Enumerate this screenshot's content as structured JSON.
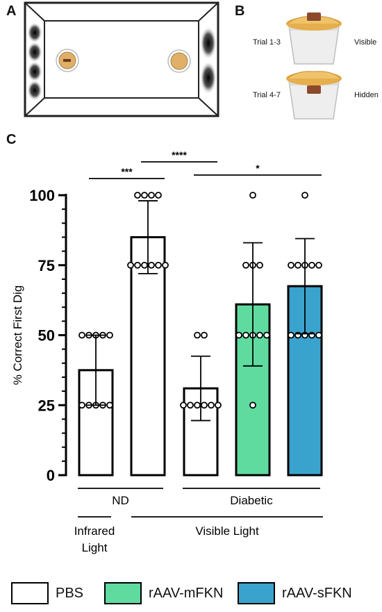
{
  "panels": {
    "a": "A",
    "b": "B",
    "c": "C"
  },
  "panel_b": {
    "rows": [
      {
        "left": "Trial 1-3",
        "right": "Visible"
      },
      {
        "left": "Trial 4-7",
        "right": "Hidden"
      }
    ]
  },
  "colors": {
    "pbs": "#ffffff",
    "mfkn": "#5fdba0",
    "sfkn": "#3aa3cd",
    "straw": "#e6ae4c",
    "block": "#8b4a2b"
  },
  "chart_data": {
    "type": "bar",
    "ylabel": "% Correct First Dig",
    "ylim": [
      0,
      100
    ],
    "yticks": [
      0,
      25,
      50,
      75,
      100
    ],
    "categories": [
      "ND PBS Infrared",
      "ND PBS Visible",
      "Diabetic PBS",
      "Diabetic rAAV-mFKN",
      "Diabetic rAAV-sFKN"
    ],
    "values": [
      37.5,
      85,
      31,
      61,
      67.5
    ],
    "errors": [
      12.5,
      13,
      11.5,
      22,
      17
    ],
    "bar_colors": [
      "#ffffff",
      "#ffffff",
      "#ffffff",
      "#5fdba0",
      "#3aa3cd"
    ],
    "points": [
      [
        25,
        25,
        25,
        25,
        25,
        50,
        50,
        50,
        50,
        50
      ],
      [
        75,
        75,
        75,
        75,
        75,
        75,
        100,
        100,
        100,
        100
      ],
      [
        25,
        25,
        25,
        25,
        25,
        25,
        50,
        50
      ],
      [
        25,
        50,
        50,
        50,
        50,
        50,
        75,
        75,
        75,
        100
      ],
      [
        50,
        50,
        50,
        50,
        50,
        75,
        75,
        75,
        75,
        75,
        100
      ]
    ],
    "significance": [
      {
        "from": 0,
        "to": 1,
        "label": "***"
      },
      {
        "from": 1,
        "to": 2,
        "label": "****"
      },
      {
        "from": 2,
        "to": 4,
        "label": "*"
      }
    ],
    "group_labels": [
      {
        "label": "ND",
        "from": 0,
        "to": 1,
        "row": 1
      },
      {
        "label": "Diabetic",
        "from": 2,
        "to": 4,
        "row": 1
      },
      {
        "label": "Infrared\nLight",
        "from": 0,
        "to": 0,
        "row": 2
      },
      {
        "label": "Visible Light",
        "from": 1,
        "to": 4,
        "row": 2
      }
    ]
  },
  "legend": [
    {
      "label": "PBS",
      "color": "#ffffff"
    },
    {
      "label": "rAAV-mFKN",
      "color": "#5fdba0"
    },
    {
      "label": "rAAV-sFKN",
      "color": "#3aa3cd"
    }
  ]
}
